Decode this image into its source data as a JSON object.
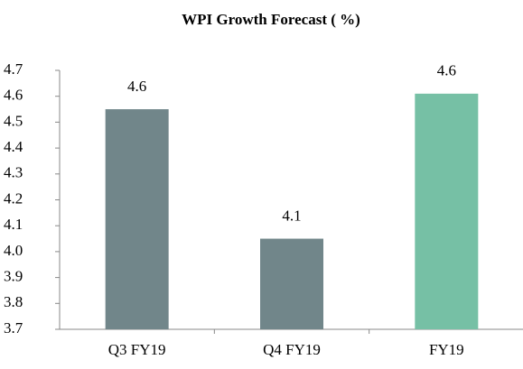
{
  "chart_data": {
    "type": "bar",
    "title": "WPI Growth Forecast ( %)",
    "categories": [
      "Q3 FY19",
      "Q4 FY19",
      "FY19"
    ],
    "values": [
      4.55,
      4.05,
      4.61
    ],
    "value_labels": [
      "4.6",
      "4.1",
      "4.6"
    ],
    "colors": [
      "#71868a",
      "#71868a",
      "#76c0a5"
    ],
    "ylim": [
      3.7,
      4.7
    ],
    "yticks": [
      3.7,
      3.8,
      3.9,
      {
        "value": 4,
        "label": "4.0"
      },
      4.1,
      4.2,
      4.3,
      4.4,
      4.5,
      4.6,
      4.7
    ],
    "grid": false
  }
}
